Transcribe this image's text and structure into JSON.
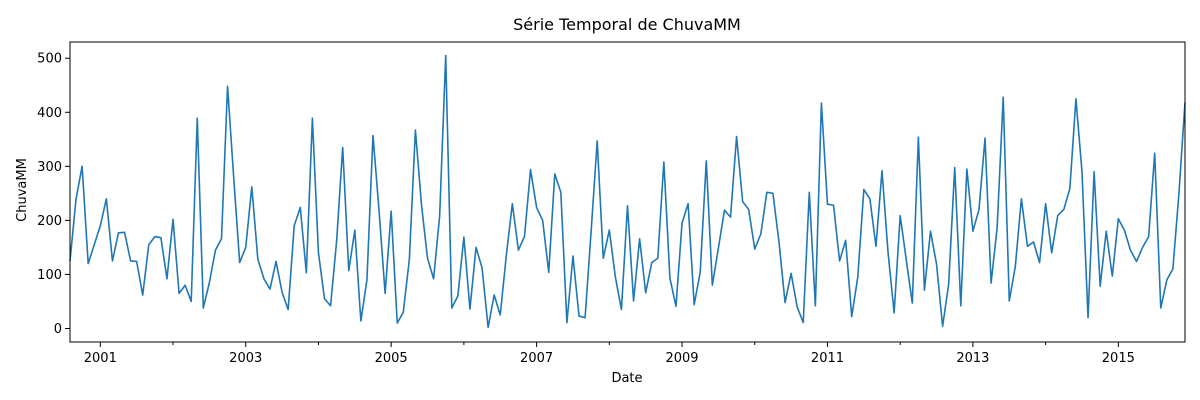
{
  "chart_data": {
    "type": "line",
    "title": "Série Temporal de ChuvaMM",
    "xlabel": "Date",
    "ylabel": "ChuvaMM",
    "x_start": "2000-08",
    "x_end": "2015-12",
    "ylim": [
      -25,
      530
    ],
    "x_ticks": [
      "2001",
      "2003",
      "2005",
      "2007",
      "2009",
      "2011",
      "2013",
      "2015"
    ],
    "y_ticks": [
      0,
      100,
      200,
      300,
      400,
      500
    ],
    "grid": false,
    "series": [
      {
        "color": "#1f77b4",
        "values": [
          125,
          240,
          300,
          120,
          155,
          190,
          240,
          125,
          177,
          178,
          125,
          124,
          62,
          155,
          170,
          168,
          92,
          202,
          65,
          80,
          50,
          389,
          38,
          85,
          145,
          166,
          448,
          282,
          122,
          150,
          262,
          128,
          92,
          73,
          124,
          67,
          35,
          190,
          224,
          103,
          389,
          140,
          55,
          42,
          162,
          335,
          107,
          182,
          14,
          90,
          357,
          218,
          65,
          217,
          10,
          30,
          128,
          367,
          229,
          130,
          92,
          208,
          505,
          38,
          60,
          169,
          36,
          150,
          112,
          2,
          62,
          25,
          135,
          231,
          145,
          170,
          294,
          224,
          200,
          104,
          286,
          252,
          11,
          134,
          23,
          20,
          180,
          347,
          130,
          182,
          95,
          35,
          227,
          51,
          166,
          66,
          122,
          130,
          308,
          93,
          41,
          195,
          231,
          44,
          104,
          310,
          80,
          149,
          219,
          206,
          355,
          235,
          220,
          147,
          175,
          252,
          250,
          160,
          48,
          102,
          40,
          11,
          252,
          42,
          417,
          230,
          228,
          125,
          163,
          22,
          95,
          257,
          240,
          152,
          292,
          140,
          29,
          209,
          127,
          47,
          354,
          71,
          180,
          119,
          4,
          82,
          298,
          42,
          295,
          180,
          220,
          352,
          84,
          187,
          428,
          51,
          115,
          240,
          152,
          160,
          122,
          231,
          140,
          209,
          220,
          259,
          425,
          290,
          20,
          290,
          78,
          180,
          97,
          203,
          182,
          145,
          124,
          150,
          170,
          324,
          38,
          90,
          110,
          250,
          418
        ]
      }
    ]
  }
}
